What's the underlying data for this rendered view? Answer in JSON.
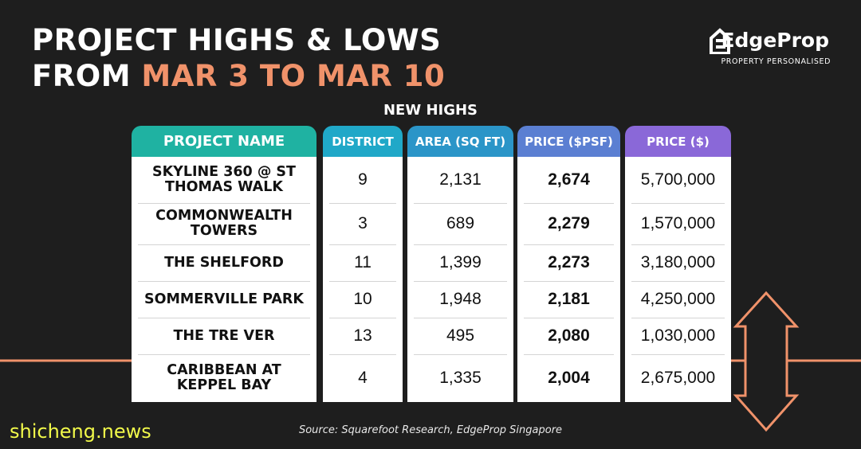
{
  "title": {
    "line1": "PROJECT HIGHS & LOWS",
    "line2_prefix": "FROM ",
    "line2_accent": "MAR 3 TO MAR 10"
  },
  "logo": {
    "word": "EdgeProp",
    "tagline": "PROPERTY PERSONALISED"
  },
  "subtitle": "NEW HIGHS",
  "colors": {
    "background": "#1e1e1e",
    "accent_orange": "#f0926a",
    "col_project": "#1fb2a2",
    "col_district": "#20a8c8",
    "col_area": "#2b95c8",
    "col_psf": "#5b7fd2",
    "col_price": "#8a68d8"
  },
  "table": {
    "headers": [
      "PROJECT NAME",
      "DISTRICT",
      "AREA (SQ FT)",
      "PRICE ($PSF)",
      "PRICE ($)"
    ],
    "rows": [
      [
        "SKYLINE 360 @ ST THOMAS WALK",
        "9",
        "2,131",
        "2,674",
        "5,700,000"
      ],
      [
        "COMMONWEALTH TOWERS",
        "3",
        "689",
        "2,279",
        "1,570,000"
      ],
      [
        "THE SHELFORD",
        "11",
        "1,399",
        "2,273",
        "3,180,000"
      ],
      [
        "SOMMERVILLE PARK",
        "10",
        "1,948",
        "2,181",
        "4,250,000"
      ],
      [
        "THE TRE VER",
        "13",
        "495",
        "2,080",
        "1,030,000"
      ],
      [
        "CARIBBEAN AT KEPPEL BAY",
        "4",
        "1,335",
        "2,004",
        "2,675,000"
      ]
    ]
  },
  "source": "Source: Squarefoot Research, EdgeProp Singapore",
  "watermark": "shicheng.news"
}
